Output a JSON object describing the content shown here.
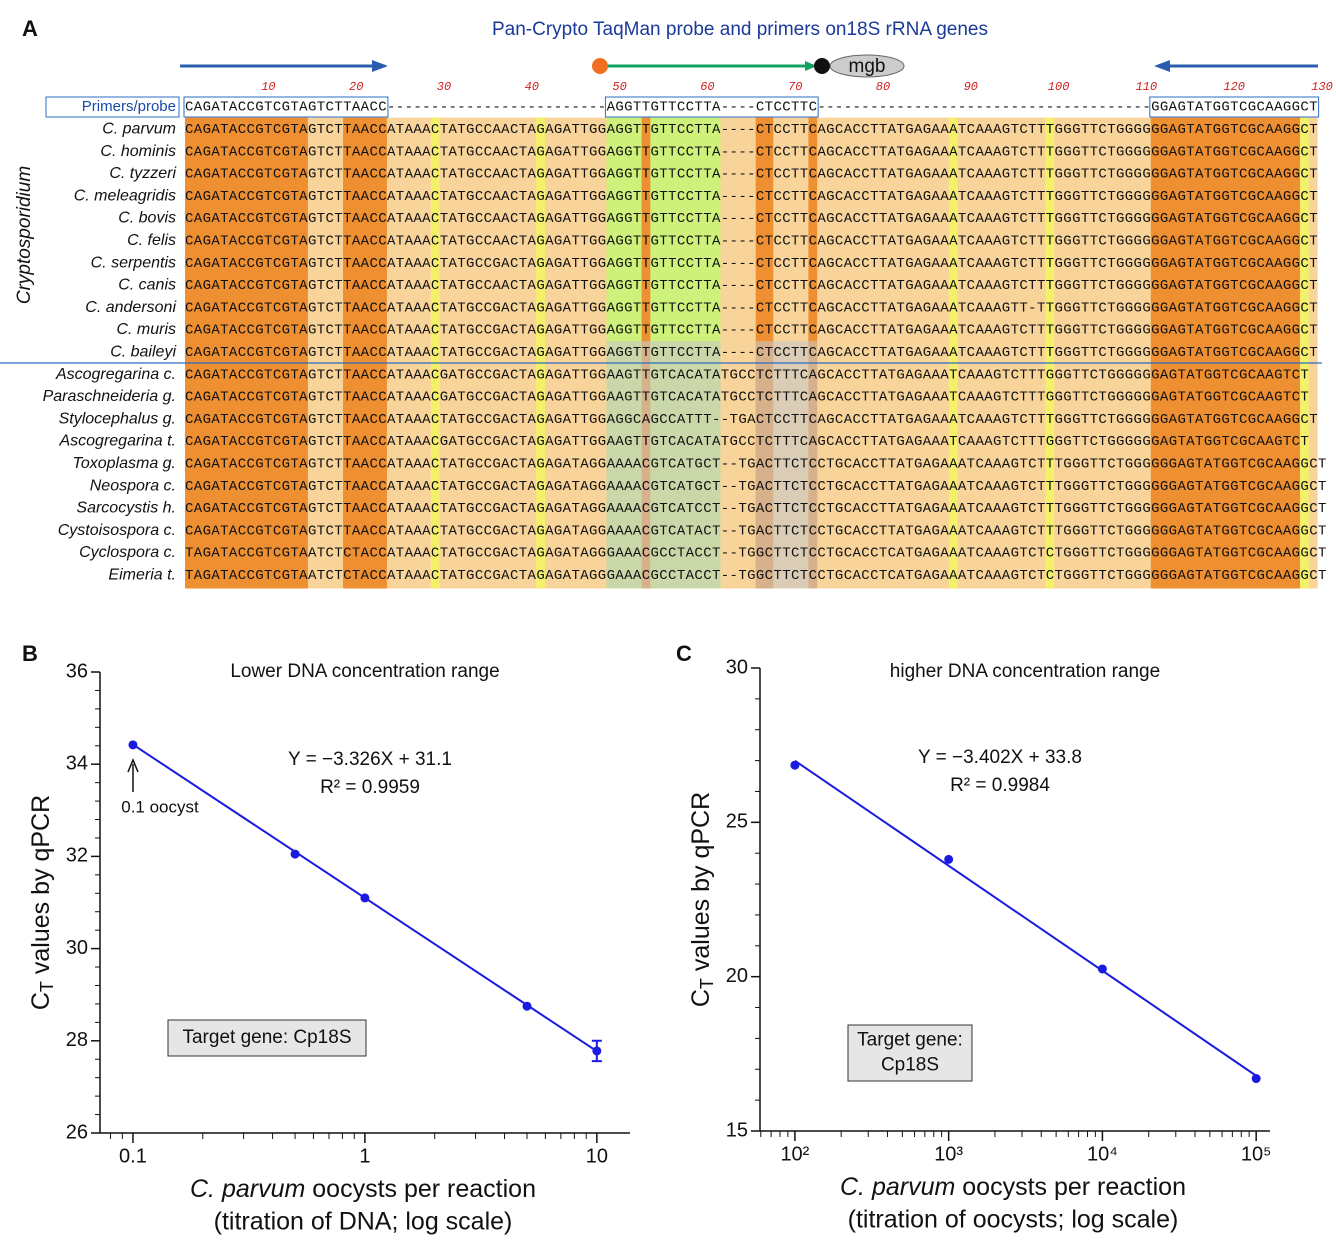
{
  "panel_a": {
    "label": "A",
    "title": "Pan-Crypto TaqMan probe and primers on18S rRNA genes",
    "mgb": "mgb",
    "group_label": "Cryptosporidium",
    "ruler": [
      10,
      20,
      30,
      40,
      50,
      60,
      70,
      80,
      90,
      100,
      110,
      120,
      130
    ],
    "rows": [
      {
        "name": "Primers/probe",
        "seq": "CAGATACCGTCGTAGTCTTAACC-------------------------AGGTTGTTCCTTA----CTCCTTC--------------------------------------GGAGTATGGTCGCAAGGCT"
      },
      {
        "name": "C. parvum",
        "seq": "CAGATACCGTCGTAGTCTTAACCATAAACTATGCCAACTAGAGATTGGAGGTTGTTCCTTA----CTCCTTCAGCACCTTATGAGAAATCAAAGTCTTTGGGTTCTGGGGGGAGTATGGTCGCAAGGCT"
      },
      {
        "name": "C. hominis",
        "seq": "CAGATACCGTCGTAGTCTTAACCATAAACTATGCCAACTAGAGATTGGAGGTTGTTCCTTA----CTCCTTCAGCACCTTATGAGAAATCAAAGTCTTTGGGTTCTGGGGGGAGTATGGTCGCAAGGCT"
      },
      {
        "name": "C. tyzzeri",
        "seq": "CAGATACCGTCGTAGTCTTAACCATAAACTATGCCAACTAGAGATTGGAGGTTGTTCCTTA----CTCCTTCAGCACCTTATGAGAAATCAAAGTCTTTGGGTTCTGGGGGGAGTATGGTCGCAAGGCT"
      },
      {
        "name": "C. meleagridis",
        "seq": "CAGATACCGTCGTAGTCTTAACCATAAACTATGCCAACTAGAGATTGGAGGTTGTTCCTTA----CTCCTTCAGCACCTTATGAGAAATCAAAGTCTTTGGGTTCTGGGGGGAGTATGGTCGCAAGGCT"
      },
      {
        "name": "C. bovis",
        "seq": "CAGATACCGTCGTAGTCTTAACCATAAACTATGCCAACTAGAGATTGGAGGTTGTTCCTTA----CTCCTTCAGCACCTTATGAGAAATCAAAGTCTTTGGGTTCTGGGGGGAGTATGGTCGCAAGGCT"
      },
      {
        "name": "C. felis",
        "seq": "CAGATACCGTCGTAGTCTTAACCATAAACTATGCCAACTAGAGATTGGAGGTTGTTCCTTA----CTCCTTCAGCACCTTATGAGAAATCAAAGTCTTTGGGTTCTGGGGGGAGTATGGTCGCAAGGCT"
      },
      {
        "name": "C. serpentis",
        "seq": "CAGATACCGTCGTAGTCTTAACCATAAACTATGCCGACTAGAGATTGGAGGTTGTTCCTTA----CTCCTTCAGCACCTTATGAGAAATCAAAGTCTTTGGGTTCTGGGGGGAGTATGGTCGCAAGGCT"
      },
      {
        "name": "C. canis",
        "seq": "CAGATACCGTCGTAGTCTTAACCATAAACTATGCCAACTAGAGATTGGAGGTTGTTCCTTA----CTCCTTCAGCACCTTATGAGAAATCAAAGTCTTTGGGTTCTGGGGGGAGTATGGTCGCAAGGCT"
      },
      {
        "name": "C. andersoni",
        "seq": "CAGATACCGTCGTAGTCTTAACCATAAACTATGCCGACTAGAGATTGGAGGTTGTTCCTTA----CTCCTTCAGCACCTTATGAGAAATCAAAGTT-TTGGGTTCTGGGGGGAGTATGGTCGCAAGGCT"
      },
      {
        "name": "C. muris",
        "seq": "CAGATACCGTCGTAGTCTTAACCATAAACTATGCCGACTAGAGATTGGAGGTTGTTCCTTA----CTCCTTCAGCACCTTATGAGAAATCAAAGTCTTTGGGTTCTGGGGGGAGTATGGTCGCAAGGCT"
      },
      {
        "name": "C. baileyi",
        "seq": "CAGATACCGTCGTAGTCTTAACCATAAACTATGCCGACTAGAGATTGGAGGTTGTTCCTTA----CTCCTTCAGCACCTTATGAGAAATCAAAGTCTTTGGGTTCTGGGGGGAGTATGGTCGCAAGGCT"
      },
      {
        "name": "Ascogregarina c.",
        "seq": "CAGATACCGTCGTAGTCTTAACCATAAACGATGCCGACTAGAGATTGGAAGTTGTCACATATGCCTCTTTCAGCACCTTATGAGAAATCAAAGTCTTTGGGTTCTGGGGGGAGTATGGTCGCAAGTCT"
      },
      {
        "name": "Paraschneideria g.",
        "seq": "CAGATACCGTCGTAGTCTTAACCATAAACGATGCCGACTAGAGATTGGAAGTTGTCACATATGCCTCTTTCAGCACCTTATGAGAAATCAAAGTCTTTGGGTTCTGGGGGGAGTATGGTCGCAAGTCT"
      },
      {
        "name": "Stylocephalus g.",
        "seq": "CAGATACCGTCGTAGTCTTAACCATAAACTATGCCGACTAGAGATTGGAGGCAGCCATTT--TGACTCCTTCAGCACCTTATGAGAAATCAAAGTCTTTGGGTTCTGGGGGGAGTATGGTCGCAAGGCT"
      },
      {
        "name": "Ascogregarina t.",
        "seq": "CAGATACCGTCGTAGTCTTAACCATAAACGATGCCGACTAGAGATTGGAAGTTGTCACATATGCCTCTTTCAGCACCTTATGAGAAATCAAAGTCTTTGGGTTCTGGGGGGAGTATGGTCGCAAGTCT"
      },
      {
        "name": "Toxoplasma g.",
        "seq": "CAGATACCGTCGTAGTCTTAACCATAAACTATGCCGACTAGAGATAGGAAAACGTCATGCT--TGACTTCTCCTGCACCTTATGAGAAATCAAAGTCTTTGGGTTCTGGGGGGAGTATGGTCGCAAGGCT"
      },
      {
        "name": "Neospora c.",
        "seq": "CAGATACCGTCGTAGTCTTAACCATAAACTATGCCGACTAGAGATAGGAAAACGTCATGCT--TGACTTCTCCTGCACCTTATGAGAAATCAAAGTCTTTGGGTTCTGGGGGGAGTATGGTCGCAAGGCT"
      },
      {
        "name": "Sarcocystis h.",
        "seq": "CAGATACCGTCGTAGTCTTAACCATAAACTATGCCGACTAGAGATAGGAAAACGTCATCCT--TGACTTCTCCTGCACCTTATGAGAAATCAAAGTCTTTGGGTTCTGGGGGGAGTATGGTCGCAAGGCT"
      },
      {
        "name": "Cystoisospora c.",
        "seq": "CAGATACCGTCGTAGTCTTAACCATAAACTATGCCGACTAGAGATAGGAAAACGTCATACT--TGACTTCTCCTGCACCTTATGAGAAATCAAAGTCTTTGGGTTCTGGGGGGAGTATGGTCGCAAGGCT"
      },
      {
        "name": "Cyclospora c.",
        "seq": "TAGATACCGTCGTAATCTCTACCATAAACTATGCCGACTAGAGATAGGGAAACGCCTACCT--TGGCTTCTCCTGCACCTCATGAGAAATCAAAGTCTCTGGGTTCTGGGGGGAGTATGGTCGCAAGGCT"
      },
      {
        "name": "Eimeria t.",
        "seq": "TAGATACCGTCGTAATCTCTACCATAAACTATGCCGACTAGAGATAGGGAAACGCCTACCT--TGGCTTCTCCTGCACCTCATGAGAAATCAAAGTCTCTGGGTTCTGGGGGGAGTATGGTCGCAAGGCT"
      }
    ]
  },
  "chart_data": [
    {
      "type": "scatter",
      "panel_label": "B",
      "title": "Lower DNA concentration range",
      "color": "#1a1ae0",
      "x": [
        0.1,
        0.5,
        1,
        5,
        10
      ],
      "values": [
        34.42,
        32.05,
        31.1,
        28.75,
        27.78
      ],
      "errors": [
        null,
        null,
        null,
        null,
        0.22
      ],
      "fit": {
        "x": [
          0.1,
          10
        ],
        "y": [
          34.426,
          27.774
        ]
      },
      "xlim": [
        0.0721,
        13.9
      ],
      "xticks": [
        0.1,
        1,
        10
      ],
      "ylim": [
        26,
        36
      ],
      "yticks": [
        26,
        28,
        30,
        32,
        34,
        36
      ],
      "log_x": true,
      "ylabel": [
        "C",
        "T",
        " values by qPCR"
      ],
      "xlabel": [
        "C. parvum",
        " oocysts per reaction"
      ],
      "xlabel_note": "(titration of DNA; log scale)",
      "equation": "Y = −3.326X + 31.1",
      "r2": "R² = 0.9959",
      "annotation": "0.1 oocyst",
      "box": [
        "Target gene: Cp18S"
      ]
    },
    {
      "type": "scatter",
      "panel_label": "C",
      "title": "higher DNA concentration range",
      "color": "#1a1ae0",
      "x": [
        100,
        1000,
        10000,
        100000
      ],
      "values": [
        26.85,
        23.8,
        20.25,
        16.7
      ],
      "fit": {
        "x": [
          100,
          100000
        ],
        "y": [
          26.996,
          16.79
        ]
      },
      "xlim": [
        59.3,
        123000
      ],
      "xticks": [
        {
          "value": 100,
          "label": "10²"
        },
        {
          "value": 1000,
          "label": "10³"
        },
        {
          "value": 10000,
          "label": "10⁴"
        },
        {
          "value": 100000,
          "label": "10⁵"
        }
      ],
      "ylim": [
        15,
        30
      ],
      "yticks": [
        15,
        20,
        25,
        30
      ],
      "log_x": true,
      "ylabel": [
        "C",
        "T",
        " values by qPCR"
      ],
      "xlabel": [
        "C. parvum",
        " oocysts per reaction"
      ],
      "xlabel_note": "(titration of oocysts; log scale)",
      "equation": "Y = −3.402X + 33.8",
      "r2": "R² = 0.9984",
      "box": [
        "Target gene:",
        "Cp18S"
      ]
    }
  ]
}
